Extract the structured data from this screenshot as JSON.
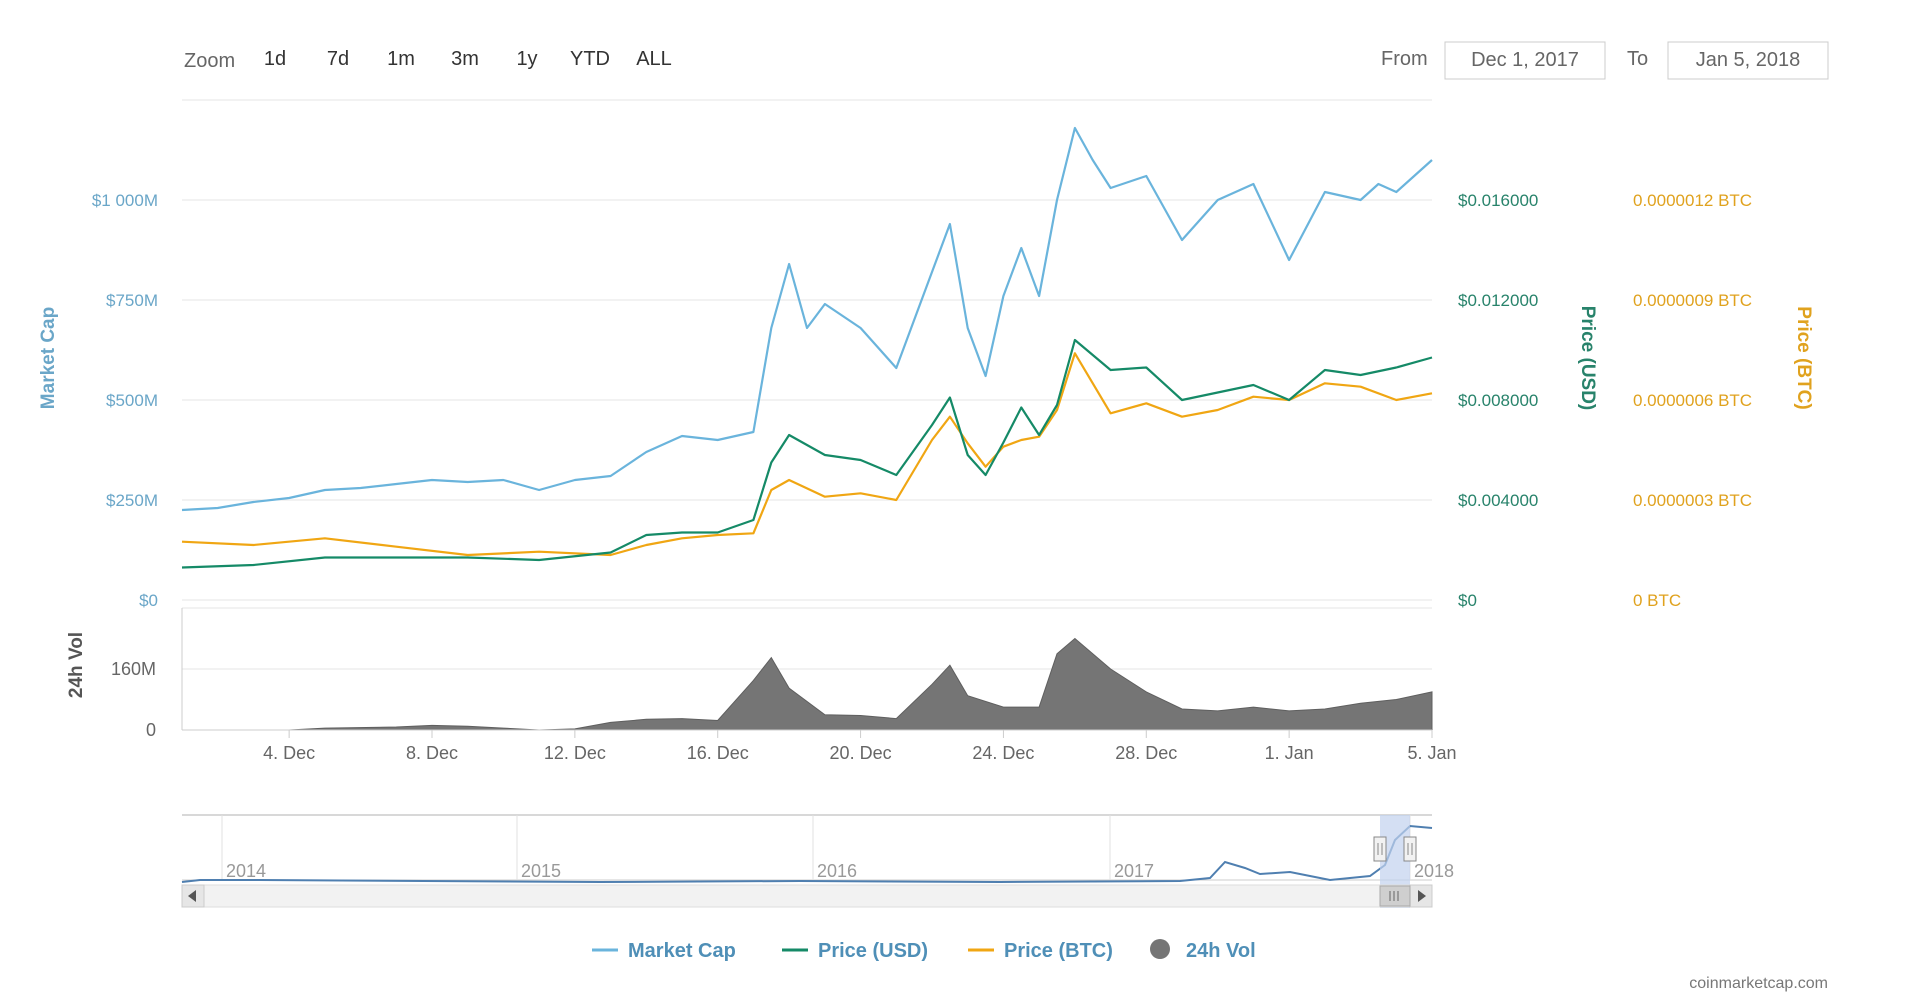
{
  "toolbar": {
    "zoom_label": "Zoom",
    "zoom_buttons": [
      "1d",
      "7d",
      "1m",
      "3m",
      "1y",
      "YTD",
      "ALL"
    ],
    "from_label": "From",
    "from_value": "Dec 1, 2017",
    "to_label": "To",
    "to_value": "Jan 5, 2018"
  },
  "colors": {
    "market_cap": "#6ab4dc",
    "price_usd": "#158a67",
    "price_btc": "#f0a613",
    "volume": "#757575",
    "legend_text": "#4f8fb7"
  },
  "credit": "coinmarketcap.com",
  "chart_data": {
    "type": "line",
    "x_start": "2017-12-01",
    "x_end": "2018-01-05",
    "x_ticks": [
      {
        "label": "4. Dec",
        "date": "2017-12-04"
      },
      {
        "label": "8. Dec",
        "date": "2017-12-08"
      },
      {
        "label": "12. Dec",
        "date": "2017-12-12"
      },
      {
        "label": "16. Dec",
        "date": "2017-12-16"
      },
      {
        "label": "20. Dec",
        "date": "2017-12-20"
      },
      {
        "label": "24. Dec",
        "date": "2017-12-24"
      },
      {
        "label": "28. Dec",
        "date": "2017-12-28"
      },
      {
        "label": "1. Jan",
        "date": "2018-01-01"
      },
      {
        "label": "5. Jan",
        "date": "2018-01-05"
      }
    ],
    "axes": {
      "market_cap": {
        "title": "Market Cap",
        "range": [
          0,
          1250000000
        ],
        "ticks": [
          "$0",
          "$250M",
          "$500M",
          "$750M",
          "$1 000M"
        ]
      },
      "price_usd": {
        "title": "Price (USD)",
        "range": [
          0,
          0.02
        ],
        "ticks": [
          "$0",
          "$0.004000",
          "$0.008000",
          "$0.012000",
          "$0.016000"
        ]
      },
      "price_btc": {
        "title": "Price (BTC)",
        "range": [
          0,
          1.5e-06
        ],
        "ticks": [
          "0 BTC",
          "0.0000003 BTC",
          "0.0000006 BTC",
          "0.0000009 BTC",
          "0.0000012 BTC"
        ]
      },
      "volume": {
        "title": "24h Vol",
        "range": [
          0,
          320000000
        ],
        "ticks": [
          "0",
          "160M"
        ]
      }
    },
    "legend": [
      "Market Cap",
      "Price (USD)",
      "Price (BTC)",
      "24h Vol"
    ],
    "series": [
      {
        "name": "Market Cap",
        "axis": "market_cap",
        "points": [
          [
            "2017-12-01",
            225000000
          ],
          [
            "2017-12-02",
            230000000
          ],
          [
            "2017-12-03",
            245000000
          ],
          [
            "2017-12-04",
            255000000
          ],
          [
            "2017-12-05",
            275000000
          ],
          [
            "2017-12-06",
            280000000
          ],
          [
            "2017-12-07",
            290000000
          ],
          [
            "2017-12-08",
            300000000
          ],
          [
            "2017-12-09",
            295000000
          ],
          [
            "2017-12-10",
            300000000
          ],
          [
            "2017-12-11",
            275000000
          ],
          [
            "2017-12-12",
            300000000
          ],
          [
            "2017-12-13",
            310000000
          ],
          [
            "2017-12-14",
            370000000
          ],
          [
            "2017-12-15",
            410000000
          ],
          [
            "2017-12-16",
            400000000
          ],
          [
            "2017-12-17",
            420000000
          ],
          [
            "2017-12-17T12:00",
            680000000
          ],
          [
            "2017-12-18",
            840000000
          ],
          [
            "2017-12-18T12:00",
            680000000
          ],
          [
            "2017-12-19",
            740000000
          ],
          [
            "2017-12-20",
            680000000
          ],
          [
            "2017-12-21",
            580000000
          ],
          [
            "2017-12-22",
            820000000
          ],
          [
            "2017-12-22T12:00",
            940000000
          ],
          [
            "2017-12-23",
            680000000
          ],
          [
            "2017-12-23T12:00",
            560000000
          ],
          [
            "2017-12-24",
            760000000
          ],
          [
            "2017-12-24T12:00",
            880000000
          ],
          [
            "2017-12-25",
            760000000
          ],
          [
            "2017-12-25T12:00",
            1000000000
          ],
          [
            "2017-12-26",
            1180000000
          ],
          [
            "2017-12-26T12:00",
            1100000000
          ],
          [
            "2017-12-27",
            1030000000
          ],
          [
            "2017-12-28",
            1060000000
          ],
          [
            "2017-12-29",
            900000000
          ],
          [
            "2017-12-30",
            1000000000
          ],
          [
            "2017-12-31",
            1040000000
          ],
          [
            "2018-01-01",
            850000000
          ],
          [
            "2018-01-02",
            1020000000
          ],
          [
            "2018-01-03",
            1000000000
          ],
          [
            "2018-01-03T12:00",
            1040000000
          ],
          [
            "2018-01-04",
            1020000000
          ],
          [
            "2018-01-05",
            1100000000
          ]
        ]
      },
      {
        "name": "Price (USD)",
        "axis": "price_usd",
        "points": [
          [
            "2017-12-01",
            0.0013
          ],
          [
            "2017-12-03",
            0.0014
          ],
          [
            "2017-12-05",
            0.0017
          ],
          [
            "2017-12-07",
            0.0017
          ],
          [
            "2017-12-09",
            0.0017
          ],
          [
            "2017-12-11",
            0.0016
          ],
          [
            "2017-12-13",
            0.0019
          ],
          [
            "2017-12-14",
            0.0026
          ],
          [
            "2017-12-15",
            0.0027
          ],
          [
            "2017-12-16",
            0.0027
          ],
          [
            "2017-12-17",
            0.0032
          ],
          [
            "2017-12-17T12:00",
            0.0055
          ],
          [
            "2017-12-18",
            0.0066
          ],
          [
            "2017-12-19",
            0.0058
          ],
          [
            "2017-12-20",
            0.0056
          ],
          [
            "2017-12-21",
            0.005
          ],
          [
            "2017-12-22",
            0.007
          ],
          [
            "2017-12-22T12:00",
            0.0081
          ],
          [
            "2017-12-23",
            0.0058
          ],
          [
            "2017-12-23T12:00",
            0.005
          ],
          [
            "2017-12-24",
            0.0063
          ],
          [
            "2017-12-24T12:00",
            0.0077
          ],
          [
            "2017-12-25",
            0.0066
          ],
          [
            "2017-12-25T12:00",
            0.0078
          ],
          [
            "2017-12-26",
            0.0104
          ],
          [
            "2017-12-27",
            0.0092
          ],
          [
            "2017-12-28",
            0.0093
          ],
          [
            "2017-12-29",
            0.008
          ],
          [
            "2017-12-30",
            0.0083
          ],
          [
            "2017-12-31",
            0.0086
          ],
          [
            "2018-01-01",
            0.008
          ],
          [
            "2018-01-02",
            0.0092
          ],
          [
            "2018-01-03",
            0.009
          ],
          [
            "2018-01-04",
            0.0093
          ],
          [
            "2018-01-05",
            0.0097
          ]
        ]
      },
      {
        "name": "Price (BTC)",
        "axis": "price_btc",
        "points": [
          [
            "2017-12-01",
            1.75e-07
          ],
          [
            "2017-12-03",
            1.65e-07
          ],
          [
            "2017-12-05",
            1.85e-07
          ],
          [
            "2017-12-07",
            1.6e-07
          ],
          [
            "2017-12-09",
            1.35e-07
          ],
          [
            "2017-12-11",
            1.45e-07
          ],
          [
            "2017-12-13",
            1.35e-07
          ],
          [
            "2017-12-14",
            1.65e-07
          ],
          [
            "2017-12-15",
            1.85e-07
          ],
          [
            "2017-12-16",
            1.95e-07
          ],
          [
            "2017-12-17",
            2e-07
          ],
          [
            "2017-12-17T12:00",
            3.3e-07
          ],
          [
            "2017-12-18",
            3.6e-07
          ],
          [
            "2017-12-19",
            3.1e-07
          ],
          [
            "2017-12-20",
            3.2e-07
          ],
          [
            "2017-12-21",
            3e-07
          ],
          [
            "2017-12-22",
            4.8e-07
          ],
          [
            "2017-12-22T12:00",
            5.5e-07
          ],
          [
            "2017-12-23",
            4.7e-07
          ],
          [
            "2017-12-23T12:00",
            4e-07
          ],
          [
            "2017-12-24",
            4.6e-07
          ],
          [
            "2017-12-24T12:00",
            4.8e-07
          ],
          [
            "2017-12-25",
            4.9e-07
          ],
          [
            "2017-12-25T12:00",
            5.7e-07
          ],
          [
            "2017-12-26",
            7.4e-07
          ],
          [
            "2017-12-27",
            5.6e-07
          ],
          [
            "2017-12-28",
            5.9e-07
          ],
          [
            "2017-12-29",
            5.5e-07
          ],
          [
            "2017-12-30",
            5.7e-07
          ],
          [
            "2017-12-31",
            6.1e-07
          ],
          [
            "2018-01-01",
            6e-07
          ],
          [
            "2018-01-02",
            6.5e-07
          ],
          [
            "2018-01-03",
            6.4e-07
          ],
          [
            "2018-01-04",
            6e-07
          ],
          [
            "2018-01-05",
            6.2e-07
          ]
        ]
      },
      {
        "name": "24h Vol",
        "axis": "volume",
        "type": "area",
        "points": [
          [
            "2017-12-01",
            0
          ],
          [
            "2017-12-04",
            0
          ],
          [
            "2017-12-05",
            5000000
          ],
          [
            "2017-12-07",
            8000000
          ],
          [
            "2017-12-08",
            12000000
          ],
          [
            "2017-12-09",
            10000000
          ],
          [
            "2017-12-10",
            5000000
          ],
          [
            "2017-12-11",
            0
          ],
          [
            "2017-12-12",
            3000000
          ],
          [
            "2017-12-13",
            20000000
          ],
          [
            "2017-12-14",
            28000000
          ],
          [
            "2017-12-15",
            30000000
          ],
          [
            "2017-12-16",
            25000000
          ],
          [
            "2017-12-17",
            130000000
          ],
          [
            "2017-12-17T12:00",
            190000000
          ],
          [
            "2017-12-18",
            110000000
          ],
          [
            "2017-12-19",
            40000000
          ],
          [
            "2017-12-20",
            38000000
          ],
          [
            "2017-12-21",
            30000000
          ],
          [
            "2017-12-22",
            120000000
          ],
          [
            "2017-12-22T12:00",
            170000000
          ],
          [
            "2017-12-23",
            90000000
          ],
          [
            "2017-12-24",
            60000000
          ],
          [
            "2017-12-25",
            60000000
          ],
          [
            "2017-12-25T12:00",
            200000000
          ],
          [
            "2017-12-26",
            240000000
          ],
          [
            "2017-12-27",
            160000000
          ],
          [
            "2017-12-28",
            100000000
          ],
          [
            "2017-12-29",
            55000000
          ],
          [
            "2017-12-30",
            50000000
          ],
          [
            "2017-12-31",
            60000000
          ],
          [
            "2018-01-01",
            50000000
          ],
          [
            "2018-01-02",
            55000000
          ],
          [
            "2018-01-03",
            70000000
          ],
          [
            "2018-01-04",
            80000000
          ],
          [
            "2018-01-05",
            100000000
          ]
        ]
      }
    ],
    "navigator": {
      "ticks": [
        "2014",
        "2015",
        "2016",
        "2017",
        "2018"
      ],
      "selection": [
        "2017-12-01",
        "2018-01-05"
      ]
    }
  }
}
